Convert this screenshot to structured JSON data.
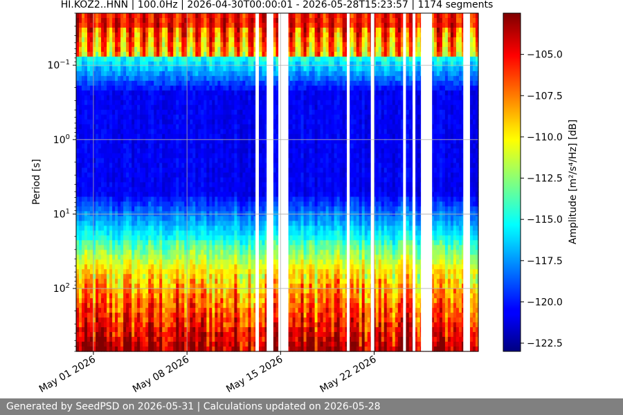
{
  "chart_data": {
    "type": "heatmap",
    "title": "HI.KOZ2..HNN | 100.0Hz | 2026-04-30T00:00:01 - 2026-05-28T15:23:57 | 1174 segments",
    "ylabel": "Period [s]",
    "xlabel": "",
    "xlim": [
      "2026-04-29T17:00:00",
      "2026-05-29T19:00:00"
    ],
    "ylim": [
      0.02,
      700
    ],
    "yscale": "log",
    "y_inverted": true,
    "grid": true,
    "x_ticks": [
      {
        "date": "2026-05-01",
        "label": "May 01 2026"
      },
      {
        "date": "2026-05-08",
        "label": "May 08 2026"
      },
      {
        "date": "2026-05-15",
        "label": "May 15 2026"
      },
      {
        "date": "2026-05-22",
        "label": "May 22 2026"
      }
    ],
    "y_ticks": [
      {
        "value": 0.1,
        "base": "10",
        "exp": "−1"
      },
      {
        "value": 1,
        "base": "10",
        "exp": "0"
      },
      {
        "value": 10,
        "base": "10",
        "exp": "1"
      },
      {
        "value": 100,
        "base": "10",
        "exp": "2"
      }
    ],
    "gaps": [
      [
        "2026-05-13T03:00:00",
        "2026-05-13T09:00:00"
      ],
      [
        "2026-05-13T23:00:00",
        "2026-05-14T11:00:00"
      ],
      [
        "2026-05-14T20:00:00",
        "2026-05-15T14:00:00"
      ],
      [
        "2026-05-19T23:00:00",
        "2026-05-20T04:00:00"
      ],
      [
        "2026-05-21T18:00:00",
        "2026-05-22T00:00:00"
      ],
      [
        "2026-05-24T04:00:00",
        "2026-05-24T09:00:00"
      ],
      [
        "2026-05-24T21:00:00",
        "2026-05-25T02:00:00"
      ],
      [
        "2026-05-25T12:00:00",
        "2026-05-26T08:00:00"
      ],
      [
        "2026-05-28T16:00:00",
        "2026-05-29T04:00:00"
      ]
    ],
    "colorbar": {
      "label": "Amplitude [m²/s⁴/Hz] [dB]",
      "range": [
        -123,
        -102.5
      ],
      "ticks": [
        -105.0,
        -107.5,
        -110.0,
        -112.5,
        -115.0,
        -117.5,
        -120.0,
        -122.5
      ],
      "colormap": "jet"
    }
  },
  "footer": {
    "text": "Generated by SeedPSD on 2026-05-31 | Calculations updated on 2026-05-28"
  }
}
